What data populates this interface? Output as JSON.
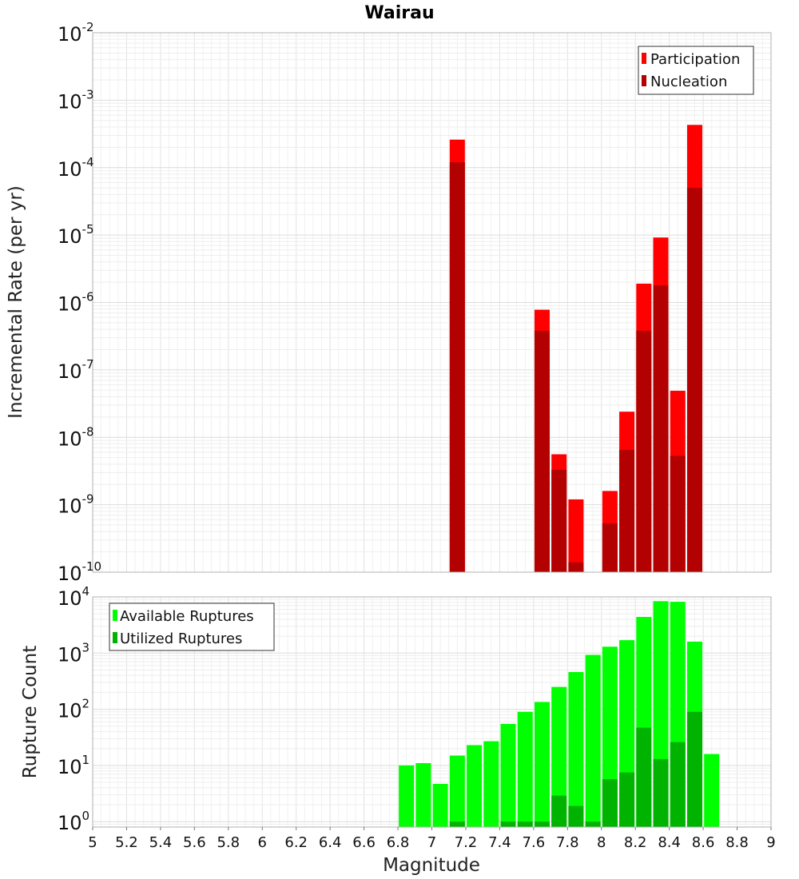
{
  "chart_data": [
    {
      "type": "bar",
      "title": "Wairau",
      "ylabel": "Incremental Rate (per yr)",
      "yscale": "log",
      "ylim": [
        1e-10,
        0.01
      ],
      "xlim": [
        5,
        9
      ],
      "grid": true,
      "legend_position": "top-right",
      "y_ticks": [
        {
          "base": "10",
          "exp": "-10"
        },
        {
          "base": "10",
          "exp": "-9"
        },
        {
          "base": "10",
          "exp": "-8"
        },
        {
          "base": "10",
          "exp": "-7"
        },
        {
          "base": "10",
          "exp": "-6"
        },
        {
          "base": "10",
          "exp": "-5"
        },
        {
          "base": "10",
          "exp": "-4"
        },
        {
          "base": "10",
          "exp": "-3"
        },
        {
          "base": "10",
          "exp": "-2"
        }
      ],
      "series": [
        {
          "name": "Participation",
          "color": "#ff0000",
          "x": [
            7.15,
            7.65,
            7.75,
            7.85,
            8.05,
            8.15,
            8.25,
            8.35,
            8.45,
            8.55
          ],
          "values": [
            0.00026,
            7.8e-07,
            5.6e-09,
            1.2e-09,
            1.6e-09,
            2.4e-08,
            1.9e-06,
            9.2e-06,
            4.9e-08,
            0.00043
          ]
        },
        {
          "name": "Nucleation",
          "color": "#b30000",
          "x": [
            7.15,
            7.65,
            7.75,
            7.85,
            8.05,
            8.15,
            8.25,
            8.35,
            8.45,
            8.55
          ],
          "values": [
            0.00012,
            3.8e-07,
            3.3e-09,
            1.4e-10,
            5.3e-10,
            6.5e-09,
            3.8e-07,
            1.8e-06,
            5.3e-09,
            5e-05
          ]
        }
      ]
    },
    {
      "type": "bar",
      "ylabel": "Rupture Count",
      "xlabel": "Magnitude",
      "yscale": "log",
      "ylim": [
        0.8,
        10000
      ],
      "xlim": [
        5,
        9
      ],
      "grid": true,
      "legend_position": "top-left",
      "x_ticks": [
        "5",
        "5.2",
        "5.4",
        "5.6",
        "5.8",
        "6",
        "6.2",
        "6.4",
        "6.6",
        "6.8",
        "7",
        "7.2",
        "7.4",
        "7.6",
        "7.8",
        "8",
        "8.2",
        "8.4",
        "8.6",
        "8.8",
        "9"
      ],
      "y_ticks": [
        {
          "base": "10",
          "exp": "0"
        },
        {
          "base": "10",
          "exp": "1"
        },
        {
          "base": "10",
          "exp": "2"
        },
        {
          "base": "10",
          "exp": "3"
        },
        {
          "base": "10",
          "exp": "4"
        }
      ],
      "series": [
        {
          "name": "Available Ruptures",
          "color": "#00ff00",
          "x": [
            6.85,
            6.95,
            7.05,
            7.15,
            7.25,
            7.35,
            7.45,
            7.55,
            7.65,
            7.75,
            7.85,
            7.95,
            8.05,
            8.15,
            8.25,
            8.35,
            8.45,
            8.55,
            8.65
          ],
          "values": [
            10,
            11,
            4.7,
            15,
            23,
            27,
            55,
            90,
            135,
            250,
            460,
            930,
            1300,
            1700,
            4400,
            8400,
            8200,
            1600,
            16
          ]
        },
        {
          "name": "Utilized Ruptures",
          "color": "#00b300",
          "x": [
            7.15,
            7.45,
            7.55,
            7.65,
            7.75,
            7.85,
            7.95,
            8.05,
            8.15,
            8.25,
            8.35,
            8.45,
            8.55
          ],
          "values": [
            1,
            1,
            1,
            1,
            2.9,
            1.9,
            1,
            5.7,
            7.5,
            47,
            13,
            26,
            90
          ]
        }
      ]
    }
  ]
}
